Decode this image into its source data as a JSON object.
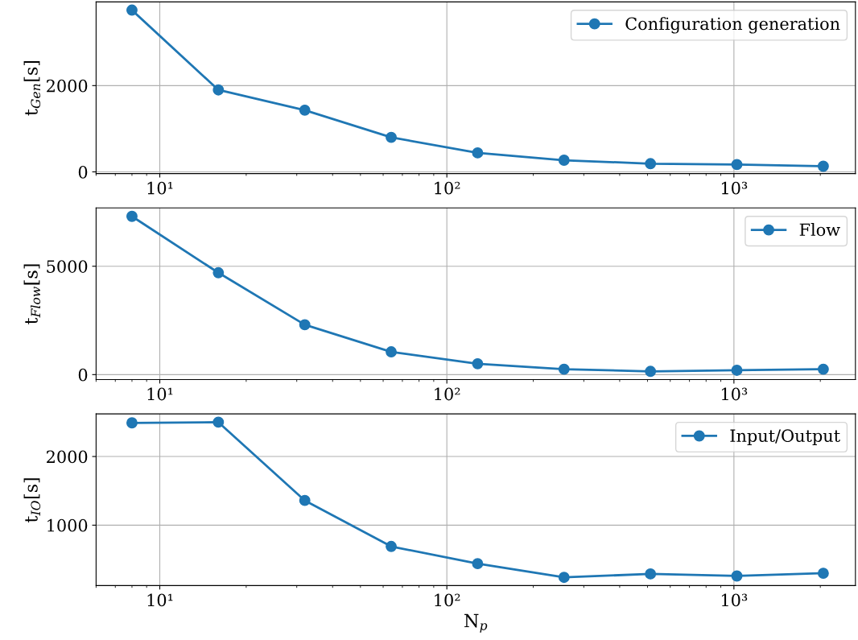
{
  "chart_data": [
    {
      "type": "line",
      "ylabel": "t$_{Gen}$[s]",
      "log": "x",
      "x": [
        8,
        16,
        32,
        64,
        128,
        256,
        512,
        1024,
        2048
      ],
      "series": [
        {
          "name": "Configuration generation",
          "color": "#1f77b4",
          "values": [
            3750,
            1900,
            1430,
            800,
            440,
            270,
            190,
            170,
            130
          ]
        }
      ],
      "xlim": [
        6,
        2650
      ],
      "ylim": [
        -40,
        3940
      ],
      "xticks": [
        {
          "value": 10,
          "label": "10¹"
        },
        {
          "value": 100,
          "label": "10²"
        },
        {
          "value": 1000,
          "label": "10³"
        }
      ],
      "yticks": [
        0,
        2000
      ],
      "grid": true,
      "legend": "top right",
      "marker": "circle",
      "line_style": "solid"
    },
    {
      "type": "line",
      "ylabel": "t$_{Flow}$[s]",
      "log": "x",
      "x": [
        8,
        16,
        32,
        64,
        128,
        256,
        512,
        1024,
        2048
      ],
      "series": [
        {
          "name": "Flow",
          "color": "#1f77b4",
          "values": [
            7300,
            4700,
            2300,
            1050,
            500,
            250,
            150,
            200,
            250
          ]
        }
      ],
      "xlim": [
        6,
        2650
      ],
      "ylim": [
        -230,
        7690
      ],
      "xticks": [
        {
          "value": 10,
          "label": "10¹"
        },
        {
          "value": 100,
          "label": "10²"
        },
        {
          "value": 1000,
          "label": "10³"
        }
      ],
      "yticks": [
        0,
        5000
      ],
      "grid": true,
      "legend": "top right",
      "marker": "circle",
      "line_style": "solid"
    },
    {
      "type": "line",
      "ylabel": "t$_{IO}$[s]",
      "xlabel": "N$_{p}$",
      "log": "x",
      "x": [
        8,
        16,
        32,
        64,
        128,
        256,
        512,
        1024,
        2048
      ],
      "series": [
        {
          "name": "Input/Output",
          "color": "#1f77b4",
          "values": [
            2490,
            2500,
            1360,
            690,
            440,
            240,
            290,
            260,
            300
          ]
        }
      ],
      "xlim": [
        6,
        2650
      ],
      "ylim": [
        120,
        2620
      ],
      "xticks": [
        {
          "value": 10,
          "label": "10¹"
        },
        {
          "value": 100,
          "label": "10²"
        },
        {
          "value": 1000,
          "label": "10³"
        }
      ],
      "yticks": [
        1000,
        2000
      ],
      "grid": true,
      "legend": "top right",
      "marker": "circle",
      "line_style": "solid"
    }
  ]
}
